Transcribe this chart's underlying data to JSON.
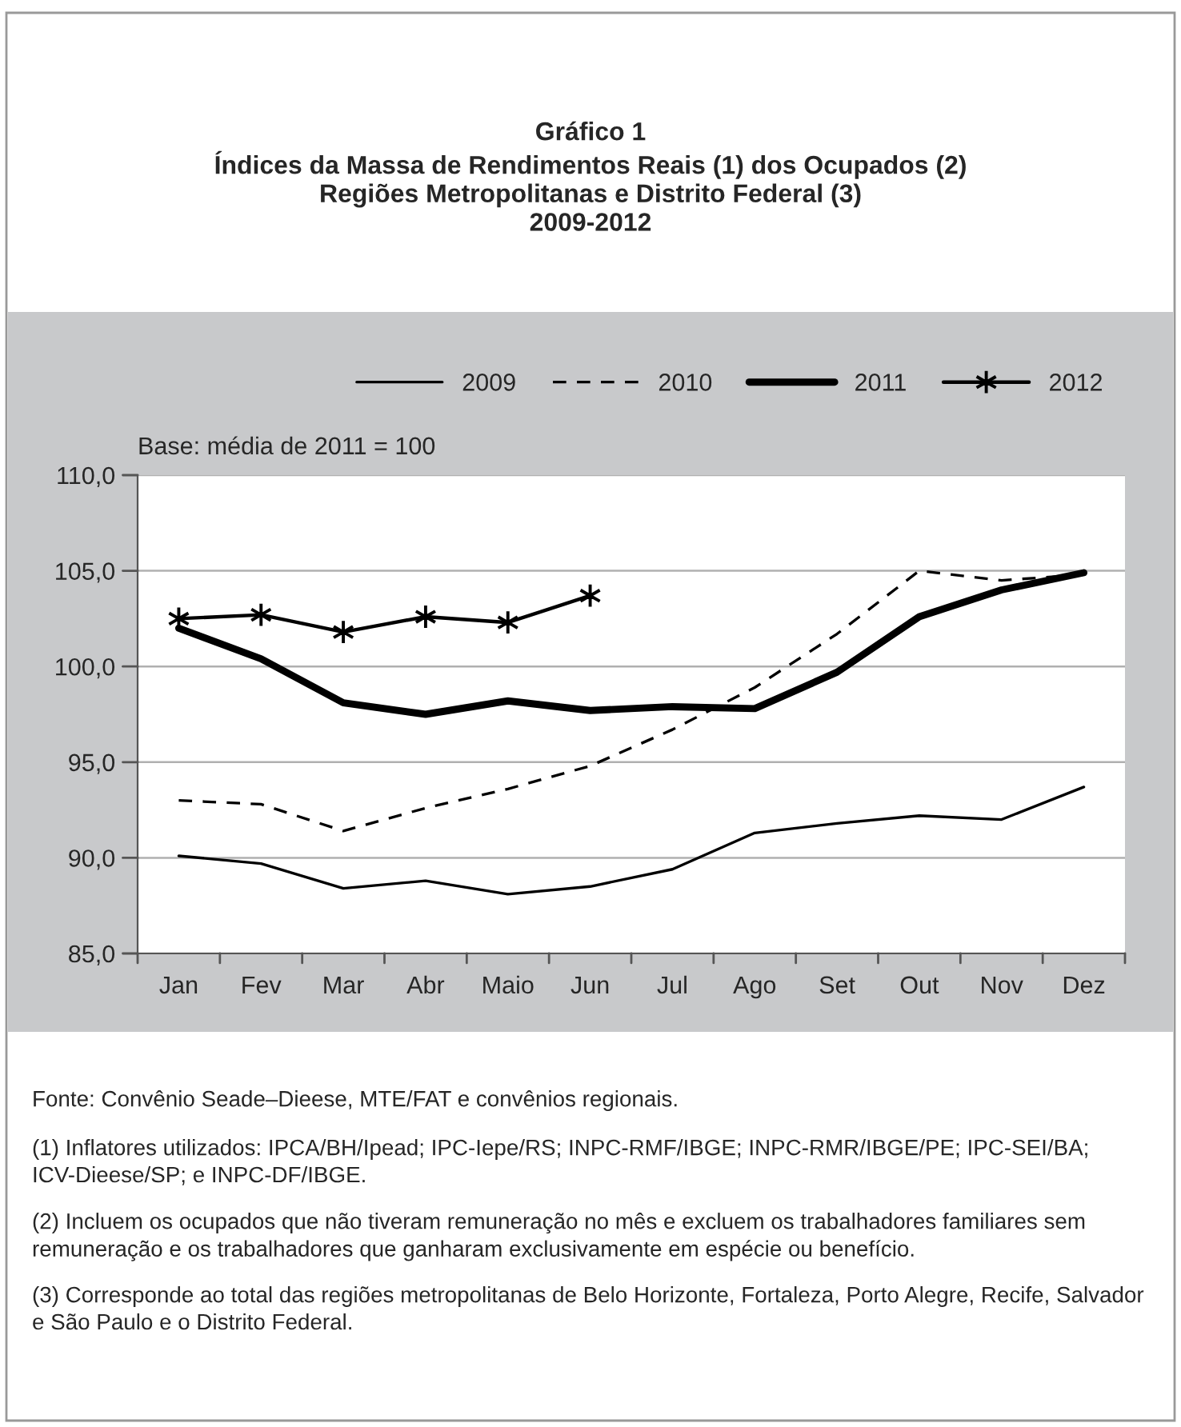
{
  "chart_data": {
    "type": "line",
    "title": "Gráfico 1\nÍndices da Massa de Rendimentos Reais (1) dos Ocupados (2)\nRegiões Metropolitanas e Distrito Federal (3)\n2009-2012",
    "categories": [
      "Jan",
      "Fev",
      "Mar",
      "Abr",
      "Maio",
      "Jun",
      "Jul",
      "Ago",
      "Set",
      "Out",
      "Nov",
      "Dez"
    ],
    "series": [
      {
        "name": "2009",
        "color": "#000000",
        "line_style": "solid",
        "marker": "none",
        "values": [
          90.1,
          89.7,
          88.4,
          88.8,
          88.1,
          88.5,
          89.4,
          91.3,
          91.8,
          92.2,
          92.0,
          93.7
        ]
      },
      {
        "name": "2010",
        "color": "#000000",
        "line_style": "dashed",
        "marker": "none",
        "values": [
          93.0,
          92.8,
          91.4,
          92.6,
          93.6,
          94.8,
          96.7,
          98.9,
          101.7,
          105.0,
          104.5,
          104.8
        ]
      },
      {
        "name": "2011",
        "color": "#000000",
        "line_style": "solid",
        "marker": "none",
        "values": [
          102.0,
          100.4,
          98.1,
          97.5,
          98.2,
          97.7,
          97.9,
          97.8,
          99.7,
          102.6,
          104.0,
          104.9
        ]
      },
      {
        "name": "2012",
        "color": "#000000",
        "line_style": "solid",
        "marker": "cross",
        "values": [
          102.5,
          102.7,
          101.8,
          102.6,
          102.3,
          103.7,
          null,
          null,
          null,
          null,
          null,
          null
        ]
      }
    ],
    "ylim": [
      85,
      110
    ],
    "yticks": [
      {
        "value": 85,
        "label": "85,0"
      },
      {
        "value": 90,
        "label": "90,0"
      },
      {
        "value": 95,
        "label": "95,0"
      },
      {
        "value": 100,
        "label": "100,0"
      },
      {
        "value": 105,
        "label": "105,0"
      },
      {
        "value": 110,
        "label": "110,0"
      }
    ],
    "grid": "y",
    "legend": "top",
    "annotations": [
      "Base: média de 2011 = 100",
      "Fonte: Convênio Seade–Dieese, MTE/FAT e convênios regionais.",
      "(1) Inflatores utilizados: IPCA/BH/Ipead; IPC-Iepe/RS; INPC-RMF/IBGE; INPC-RMR/IBGE/PE; IPC-SEI/BA; ICV-Dieese/SP; e INPC-DF/IBGE.",
      "(2) Incluem os ocupados que não tiveram remuneração no mês e excluem os trabalhadores familiares sem remuneração e os trabalhadores que ganharam exclusivamente em espécie ou benefício.",
      "(3) Corresponde ao total das regiões metropolitanas de Belo Horizonte, Fortaleza, Porto Alegre, Recife, Salvador e São Paulo e o Distrito Federal."
    ]
  }
}
